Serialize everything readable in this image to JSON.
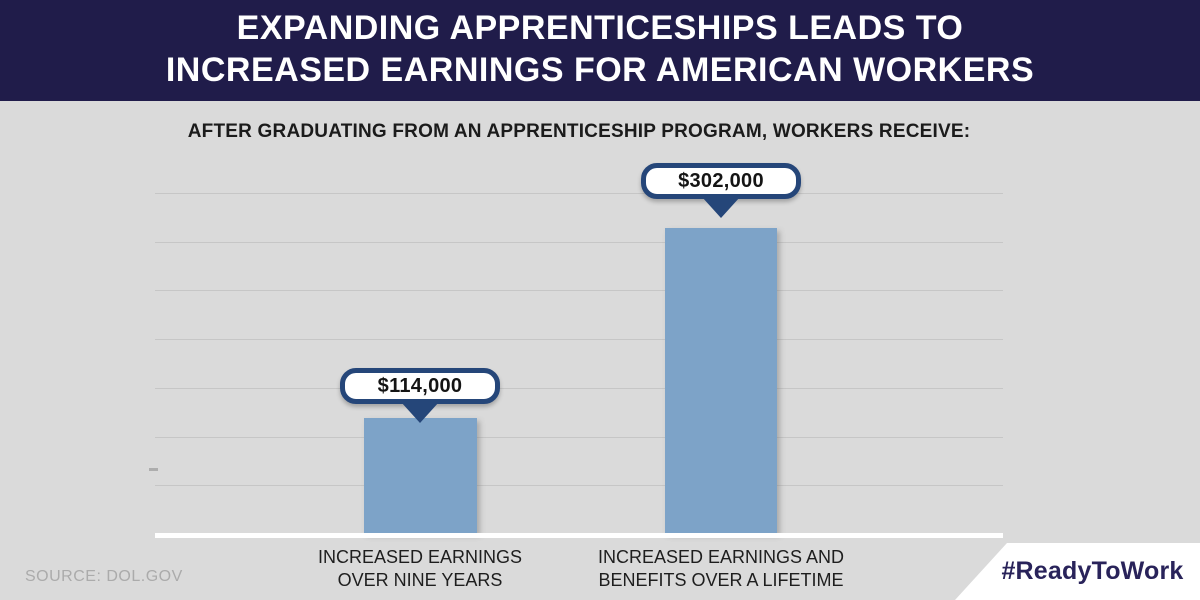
{
  "header": {
    "title_line1": "EXPANDING APPRENTICESHIPS LEADS TO",
    "title_line2": "INCREASED EARNINGS FOR AMERICAN WORKERS"
  },
  "subtitle": "AFTER GRADUATING FROM AN APPRENTICESHIP PROGRAM, WORKERS RECEIVE:",
  "chart_data": {
    "type": "bar",
    "title": "EXPANDING APPRENTICESHIPS LEADS TO INCREASED EARNINGS FOR AMERICAN WORKERS",
    "subtitle": "AFTER GRADUATING FROM AN APPRENTICESHIP PROGRAM, WORKERS RECEIVE:",
    "categories": [
      "INCREASED EARNINGS OVER NINE YEARS",
      "INCREASED EARNINGS AND BENEFITS OVER A LIFETIME"
    ],
    "category_lines": [
      [
        "INCREASED EARNINGS",
        "OVER NINE YEARS"
      ],
      [
        "INCREASED EARNINGS AND",
        "BENEFITS OVER A LIFETIME"
      ]
    ],
    "values": [
      114000,
      302000
    ],
    "value_labels": [
      "$114,000",
      "$302,000"
    ],
    "xlabel": "",
    "ylabel": "",
    "ylim": [
      0,
      350000
    ],
    "gridline_count": 7,
    "grid": "horizontal",
    "legend": "none",
    "bar_color": "#7DA3C8"
  },
  "footer": {
    "source": "SOURCE: DOL.GOV",
    "hashtag": "#ReadyToWork"
  },
  "colors": {
    "header_bg": "#201C4A",
    "body_bg": "#DADADA",
    "bar": "#7DA3C8",
    "callout_border": "#254679",
    "callout_bg": "#FFFFFF",
    "gridline": "#C6C6C6",
    "axis_line": "#FFFFFF",
    "badge_bg": "#FFFFFF",
    "badge_text": "#29235A",
    "source_text": "#ABABAB"
  }
}
